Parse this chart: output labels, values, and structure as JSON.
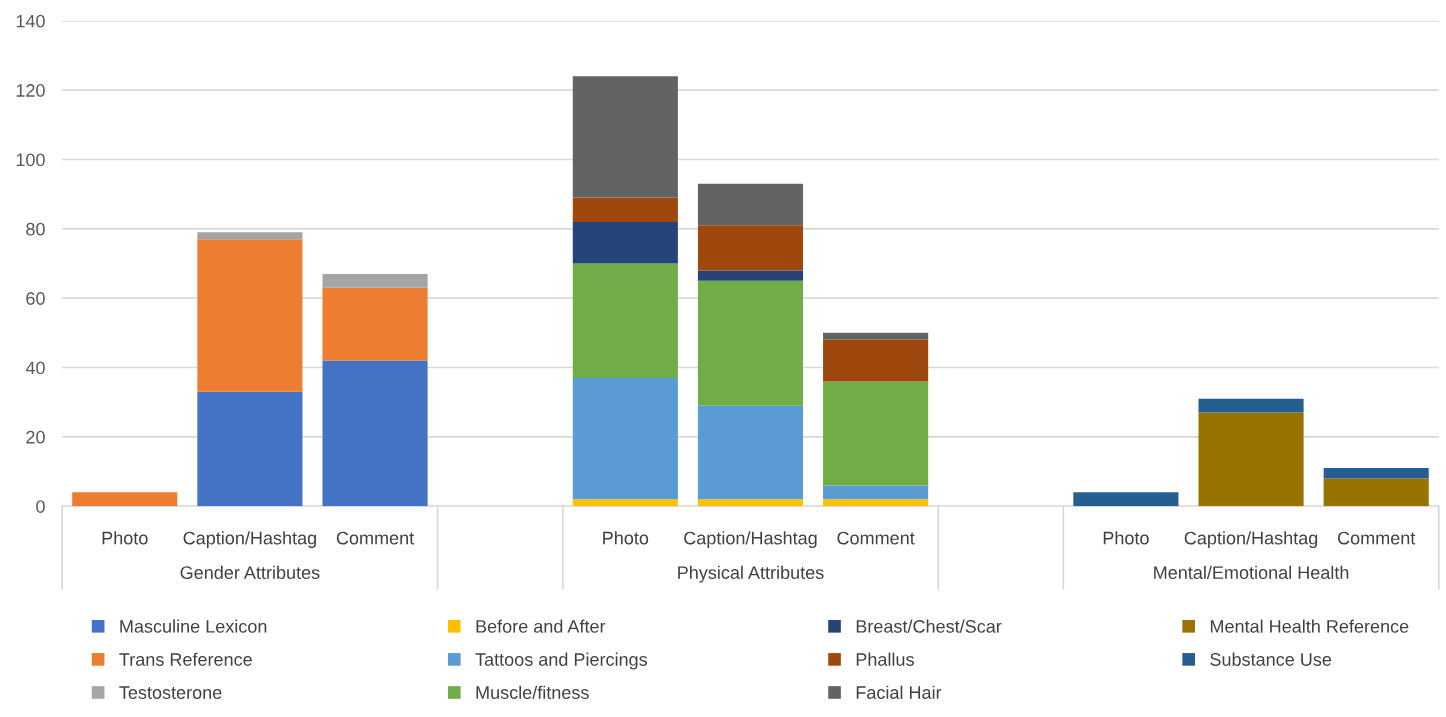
{
  "chart_data": {
    "type": "bar",
    "stacked": true,
    "categories": [
      "Photo",
      "Caption/Hashtag",
      "Comment",
      null,
      "Photo",
      "Caption/Hashtag",
      "Comment",
      null,
      "Photo",
      "Caption/Hashtag",
      "Comment"
    ],
    "annotations": [
      "Gender Attributes",
      "Physical Attributes",
      "Mental/Emotional Health"
    ],
    "series": [
      {
        "name": "Masculine Lexicon",
        "color": "#4472c4",
        "values": [
          0,
          33,
          42,
          0,
          0,
          0,
          0,
          0,
          0,
          0,
          0
        ]
      },
      {
        "name": "Trans Reference",
        "color": "#ed7d31",
        "values": [
          4,
          44,
          21,
          0,
          0,
          0,
          0,
          0,
          0,
          0,
          0
        ]
      },
      {
        "name": "Testosterone",
        "color": "#a5a5a5",
        "values": [
          0,
          2,
          4,
          0,
          0,
          0,
          0,
          0,
          0,
          0,
          0
        ]
      },
      {
        "name": "Before and After",
        "color": "#ffc000",
        "values": [
          0,
          0,
          0,
          0,
          2,
          2,
          2,
          0,
          0,
          0,
          0
        ]
      },
      {
        "name": "Tattoos and Piercings",
        "color": "#5b9bd5",
        "values": [
          0,
          0,
          0,
          0,
          35,
          27,
          4,
          0,
          0,
          0,
          0
        ]
      },
      {
        "name": "Muscle/fitness",
        "color": "#70ad47",
        "values": [
          0,
          0,
          0,
          0,
          33,
          36,
          30,
          0,
          0,
          0,
          0
        ]
      },
      {
        "name": "Breast/Chest/Scar",
        "color": "#264478",
        "values": [
          0,
          0,
          0,
          0,
          12,
          3,
          0,
          0,
          0,
          0,
          0
        ]
      },
      {
        "name": "Phallus",
        "color": "#9e480e",
        "values": [
          0,
          0,
          0,
          0,
          7,
          13,
          12,
          0,
          0,
          0,
          0
        ]
      },
      {
        "name": "Facial Hair",
        "color": "#636363",
        "values": [
          0,
          0,
          0,
          0,
          35,
          12,
          2,
          0,
          0,
          0,
          0
        ]
      },
      {
        "name": "Mental Health Reference",
        "color": "#997300",
        "values": [
          0,
          0,
          0,
          0,
          0,
          0,
          0,
          0,
          0,
          27,
          8
        ]
      },
      {
        "name": "Substance Use",
        "color": "#255e91",
        "values": [
          0,
          0,
          0,
          0,
          0,
          0,
          0,
          0,
          4,
          4,
          3
        ]
      }
    ],
    "ylim": [
      0,
      140
    ],
    "yticks": [
      0,
      20,
      40,
      60,
      80,
      100,
      120,
      140
    ],
    "grid": "y",
    "legend": "bottom"
  }
}
